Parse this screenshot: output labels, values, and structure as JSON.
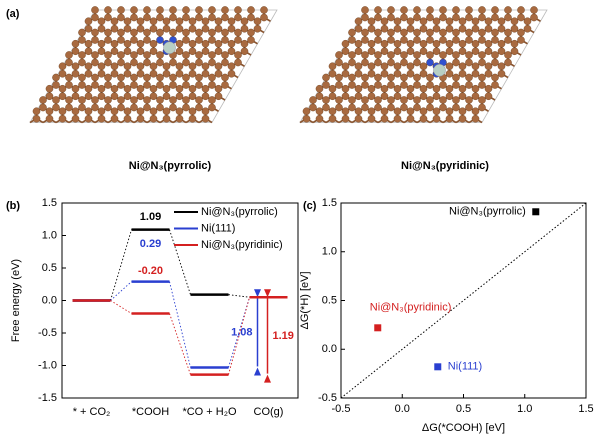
{
  "panel_labels": [
    "(a)",
    "(b)",
    "(c)"
  ],
  "structures": [
    {
      "label": "Ni@N₃(pyrrolic)"
    },
    {
      "label": "Ni@N₃(pyridinic)"
    }
  ],
  "chart_data": [
    {
      "type": "step",
      "ylabel": "Free energy (eV)",
      "categories": [
        "* + CO₂",
        "*COOH",
        "*CO + H₂O",
        "CO(g)"
      ],
      "ylim": [
        -1.5,
        1.5
      ],
      "yticks": [
        1.5,
        {
          "value": 1,
          "label": "1.0"
        },
        0.5,
        {
          "value": 0,
          "label": "0.0"
        },
        -0.5,
        {
          "value": -1,
          "label": "-1.0"
        },
        -1.5
      ],
      "series": [
        {
          "name": "Ni@N₃(pyrrolic)",
          "color": "#000000",
          "values": [
            0,
            1.09,
            0.09,
            0.05
          ],
          "value_labels": [
            null,
            "1.09",
            null,
            null
          ]
        },
        {
          "name": "Ni(111)",
          "color": "#2a3fd0",
          "values": [
            0,
            0.29,
            -1.03,
            0.05
          ],
          "value_labels": [
            null,
            "0.29",
            null,
            null
          ],
          "arrow": 1.08
        },
        {
          "name": "Ni@N₃(pyridinic)",
          "color": "#d42020",
          "values": [
            0,
            -0.2,
            -1.14,
            0.05
          ],
          "value_labels": [
            null,
            "-0.20",
            null,
            null
          ],
          "arrow": 1.19
        }
      ]
    },
    {
      "type": "scatter",
      "xlabel": "ΔG(*COOH) [eV]",
      "ylabel": "ΔG(*H) [eV]",
      "xlim": [
        -0.5,
        1.5
      ],
      "xticks": [
        -0.5,
        {
          "value": 0,
          "label": "0.0"
        },
        0.5,
        {
          "value": 1,
          "label": "1.0"
        },
        1.5
      ],
      "ylim": [
        -0.5,
        1.5
      ],
      "yticks": [
        -0.5,
        {
          "value": 0,
          "label": "0.0"
        },
        0.5,
        {
          "value": 1,
          "label": "1.0"
        },
        1.5
      ],
      "diagonal": true,
      "series": [
        {
          "name": "Ni@N₃(pyrrolic)",
          "color": "#000000",
          "x": [
            1.09
          ],
          "values": [
            1.41
          ]
        },
        {
          "name": "Ni@N₃(pyridinic)",
          "color": "#d42020",
          "x": [
            -0.2
          ],
          "values": [
            0.22
          ]
        },
        {
          "name": "Ni(111)",
          "color": "#2a3fd0",
          "x": [
            0.29
          ],
          "values": [
            -0.18
          ]
        }
      ]
    }
  ]
}
